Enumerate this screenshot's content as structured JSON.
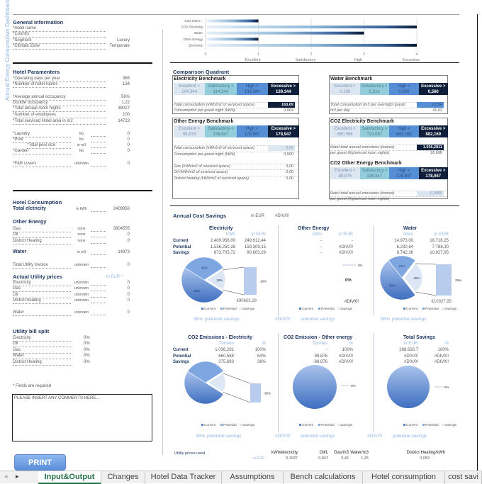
{
  "sidebar_title": "Annual Energy Consumption Dashboard",
  "general": {
    "title": "General Information",
    "rows": [
      {
        "label": "*Hotel name",
        "value": ""
      },
      {
        "label": "*Country",
        "value": ""
      },
      {
        "label": "*Segment",
        "value": "Luxury"
      },
      {
        "label": "*Climate Zone",
        "value": "Temperate"
      }
    ]
  },
  "params": {
    "title": "Hotel Paramenters",
    "rows": [
      {
        "label": "*Operating days per year",
        "unit": "",
        "value": "365"
      },
      {
        "label": "*Number of hotel rooms",
        "unit": "",
        "value": "134"
      },
      {
        "label": "*Average annual occupancy",
        "unit": "",
        "value": "56%"
      },
      {
        "label": "Double occupancy",
        "unit": "",
        "value": "1,22"
      },
      {
        "label": "*Total annual room nights",
        "unit": "",
        "value": "38027"
      },
      {
        "label": "*Number of employees",
        "unit": "",
        "value": "100"
      },
      {
        "label": "*Total serviced Hotel area in m2",
        "unit": "",
        "value": "14723"
      },
      {
        "label": "*Laundry",
        "unit": "No",
        "value": "0"
      },
      {
        "label": "*Pool",
        "unit": "No",
        "value": "0"
      },
      {
        "label": "*Total pool size",
        "unit": "in m3",
        "value": "0"
      },
      {
        "label": "*Garden",
        "unit": "No",
        "value": "0"
      },
      {
        "label": "*F&B covers",
        "unit": "unknown",
        "value": "0"
      }
    ]
  },
  "consumption": {
    "title": "Hotel Consumption",
    "rows": [
      {
        "type": "bold",
        "label": "Total elctricity",
        "unit": "in kWh",
        "value": "2409956"
      },
      {
        "type": "heading",
        "label": "Other Energy",
        "unit": "",
        "value": ""
      },
      {
        "type": "row",
        "label": "Gas",
        "unit": "none",
        "value": "3804555"
      },
      {
        "type": "row",
        "label": "Oil",
        "unit": "none",
        "value": "0"
      },
      {
        "type": "row",
        "label": "District Heating",
        "unit": "none",
        "value": "0"
      },
      {
        "type": "bold",
        "label": "Water",
        "unit": "in m3",
        "value": "14973"
      },
      {
        "type": "row",
        "label": "Total Utility Invoice",
        "unit": "unknown",
        "value": "0"
      },
      {
        "type": "heading",
        "label": "Actual Utility prices",
        "unit": "in EUR *",
        "value": ""
      },
      {
        "type": "row",
        "label": "Electricity",
        "unit": "unknown",
        "value": "0"
      },
      {
        "type": "row",
        "label": "Gas",
        "unit": "unknown",
        "value": "0"
      },
      {
        "type": "row",
        "label": "Oil",
        "unit": "unknown",
        "value": "0"
      },
      {
        "type": "row",
        "label": "District heating",
        "unit": "unknown",
        "value": "0"
      },
      {
        "type": "row",
        "label": "Water",
        "unit": "unknown",
        "value": "0"
      }
    ]
  },
  "bill_split": {
    "title": "Utility bill split",
    "rows": [
      {
        "label": "Electricity",
        "value": "0%"
      },
      {
        "label": "Oil",
        "value": "0%"
      },
      {
        "label": "Gas",
        "value": "0%"
      },
      {
        "label": "Water",
        "value": "0%"
      },
      {
        "label": "District Heating",
        "value": "0%"
      }
    ]
  },
  "required_note": "* Fields are required",
  "comments": {
    "value": "PLEASE INSERT ANY COMMENTS HERE..."
  },
  "print_label": "PRINT",
  "chart_data": {
    "type": "bar",
    "orientation": "horizontal",
    "categories": [
      "CO2 Other...",
      "CO2 Electricity",
      "Water",
      "Other Energy",
      "Electricity"
    ],
    "values": [
      1,
      4,
      3,
      1,
      4
    ],
    "xlim": [
      0,
      4
    ],
    "xticks": [
      "0",
      "1",
      "2",
      "3",
      "4"
    ],
    "rating_labels": [
      "Excellent",
      "Satisfactory",
      "High",
      "Excessive"
    ],
    "grid": true,
    "legend": "none"
  },
  "quadrant_title": "Comparison Quadrant",
  "benchmarks": [
    {
      "title": "Electricity Benchmark",
      "levels": [
        "Excellent <",
        "Satisfactory <",
        "High <",
        "Excessive >"
      ],
      "values": [
        "104.344",
        "114.344",
        "139.344",
        "139.344"
      ],
      "rows": [
        {
          "label": "Total consumption (kWh/m2 of serviced space)",
          "value": "163,69",
          "style": "lv3"
        },
        {
          "label": "Consumption per guest night (kWh)",
          "value": "0,004",
          "style": ""
        }
      ]
    },
    {
      "title": "Water Benchmark",
      "levels": [
        "Excellent <",
        "Satisfactory <",
        "High <",
        "Excessive >"
      ],
      "values": [
        "0,160",
        "0,310",
        "0,560",
        "0,560"
      ],
      "rows": [
        {
          "label": "Total consumption (m3 per overnight guest)",
          "value": "0,394",
          "style": "lv2"
        },
        {
          "label": "m3 per day",
          "value": "41,02",
          "style": ""
        }
      ]
    },
    {
      "title": "Other Energy Benchmark",
      "levels": [
        "Excellent <",
        "Satisfactory <",
        "High <",
        "Excessive >"
      ],
      "values": [
        "88,876",
        "138,947",
        "178,947",
        "178,947"
      ],
      "rows": [
        {
          "label": "Total consumption (kWh/m2 of serviced space)",
          "value": "0,00",
          "style": "lv0"
        },
        {
          "label": "Consumption per guest night (kWh)",
          "value": "0,000",
          "style": ""
        },
        {
          "label": "Gas (kWh/m2 of serviced space)",
          "value": "0,00",
          "style": ""
        },
        {
          "label": "Oil (kWh/m2 of serviced space)",
          "value": "0,00",
          "style": ""
        },
        {
          "label": "District heating (kWh/m2 of serviced space)",
          "value": "0,00",
          "style": ""
        }
      ]
    },
    {
      "title": "CO2 Electricity Benchmark",
      "levels": [
        "Excellent <",
        "Satisfactory <",
        "High <",
        "Excessive >"
      ],
      "values": [
        "660,588",
        "723,097",
        "882,169",
        "882,169"
      ],
      "rows": [
        {
          "label": "Hotel total annual emissions (tonnes)",
          "value": "1.036,2811",
          "style": "lv3"
        },
        {
          "label": "per guest (Kg/annual room nights)",
          "value": "26,690",
          "style": ""
        }
      ]
    },
    {
      "title": "CO2 Other Energy Benchmark",
      "levels": [
        "Excellent <",
        "Satisfactory <",
        "High <",
        "Excessive >"
      ],
      "values": [
        "88,876",
        "138,947",
        "178,947",
        "178,947"
      ],
      "rows": [
        {
          "label": "Hotel total annual emissions (tonnes)",
          "value": "0,0000",
          "style": "lv0"
        },
        {
          "label": "per guest (Kg/annual room nights)",
          "value": "-",
          "style": ""
        }
      ]
    }
  ],
  "savings": {
    "title": "Annual Cost Savings",
    "unit": "in EUR",
    "value": "#DIV/0!",
    "row_labels": [
      "Current",
      "Potential",
      "Savings"
    ],
    "legend": [
      "Current",
      "Potential",
      "Savings"
    ],
    "colors": {
      "current": "#5585d0",
      "potential": "#7ea6e0",
      "savings": "#dde6f4",
      "bar": "#b8cdee"
    },
    "panels": [
      {
        "title": "Electricity",
        "cols": [
          "kWh",
          "in EUR"
        ],
        "rows": [
          [
            "2.409.956,00",
            "249.912,44"
          ],
          [
            "1.536.250,28",
            "159.309,15"
          ],
          [
            "873.705,72",
            "90.603,29"
          ]
        ],
        "pie": [
          50,
          32,
          18
        ],
        "pie_labels": [
          "50%",
          "32%",
          "18%"
        ],
        "bar_label": "18%",
        "callout": "90603,29",
        "footer_pct": "36%",
        "footer": "potential savings"
      },
      {
        "title": "Other Energy",
        "cols": [
          "kWh",
          "in EUR"
        ],
        "rows": [
          [
            "-",
            "-"
          ],
          [
            "-",
            "#DIV/0!"
          ],
          [
            "-",
            "#DIV/0!"
          ]
        ],
        "pie": [],
        "pie_labels": [
          "0%"
        ],
        "bar_label": "0%",
        "callout": "#DIV/0!",
        "footer_pct": "#DIV/0!",
        "footer": "potential savings"
      },
      {
        "title": "Water",
        "cols": [
          "litres",
          "in EUR"
        ],
        "rows": [
          [
            "14.973,00",
            "18.716,25"
          ],
          [
            "6.230,64",
            "7.788,30"
          ],
          [
            "8.742,36",
            "10.927,95"
          ]
        ],
        "pie": [
          50,
          21,
          29
        ],
        "pie_labels": [
          "50%",
          "21%",
          "29%"
        ],
        "bar_label": "29%",
        "callout": "10927,95",
        "footer_pct": "58%",
        "footer": "potential savings"
      },
      {
        "title": "CO2 Emissions - Electricity",
        "cols": [
          "Tonnes",
          "%"
        ],
        "rows": [
          [
            "1.036,281",
            "100%"
          ],
          [
            "660,588",
            "64%"
          ],
          [
            "375,693",
            "36%"
          ]
        ],
        "pie": [
          50,
          32,
          18
        ],
        "pie_labels": [],
        "bar_label": "36%",
        "callout": "",
        "footer_pct": "36%",
        "footer": "potential savings"
      },
      {
        "title": "CO2 Emission - Other energy",
        "cols": [
          "Tonnes",
          "%"
        ],
        "rows": [
          [
            "-",
            "100%"
          ],
          [
            "88,876",
            "#DIV/0!"
          ],
          [
            "-88,876",
            "#DIV/0!"
          ]
        ],
        "pie": [
          100
        ],
        "pie_labels": [],
        "bar_label": "0%",
        "callout": "",
        "footer_pct": "#DIV/0!",
        "footer": "potential savings"
      },
      {
        "title": "Total Savings",
        "cols": [
          "in EUR",
          "%"
        ],
        "rows": [
          [
            "268.628,7",
            "100%"
          ],
          [
            "#DIV/0!",
            "#DIV/0!"
          ],
          [
            "#DIV/0!",
            "#DIV/0!"
          ]
        ],
        "pie": [
          100
        ],
        "pie_labels": [],
        "bar_label": "0%",
        "callout": "",
        "footer_pct": "#DIV/0!",
        "footer": "potential savings"
      }
    ]
  },
  "utility_prices": {
    "label": "Utility prices used",
    "unit": "in EUR",
    "cols": [
      {
        "h": "kWh/elecricity",
        "v": "0,1037"
      },
      {
        "h": "Oil/L",
        "v": "0,847"
      },
      {
        "h": "Gas/m3",
        "v": "0,45"
      },
      {
        "h": "Water/m3",
        "v": "1,25"
      },
      {
        "h": "District Heating/kWh",
        "v": "0,059"
      }
    ]
  },
  "tabs": [
    {
      "label": "Input&Output",
      "active": true
    },
    {
      "label": "Changes"
    },
    {
      "label": "Hotel Data Tracker"
    },
    {
      "label": "Assumptions"
    },
    {
      "label": "Bench calculations"
    },
    {
      "label": "Hotel consumption"
    },
    {
      "label": "cost savi"
    }
  ]
}
